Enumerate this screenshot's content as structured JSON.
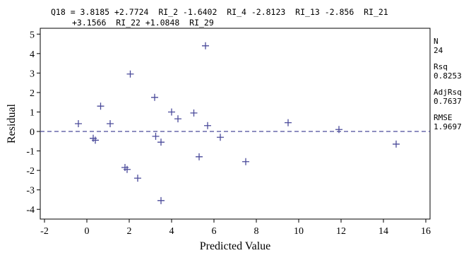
{
  "equation": {
    "line1": "Q18 = 3.8185 +2.7724  RI_2 -1.6402  RI_4 -2.8123  RI_13 -2.856  RI_21",
    "line2": "+3.1566  RI_22 +1.0848  RI_29"
  },
  "stats": [
    {
      "label": "N",
      "value": "24"
    },
    {
      "label": "Rsq",
      "value": "0.8253"
    },
    {
      "label": "AdjRsq",
      "value": "0.7637"
    },
    {
      "label": "RMSE",
      "value": "1.9697"
    }
  ],
  "colors": {
    "marker": "#4a4a9a",
    "reference_line": "#4a4a9a",
    "axis": "#000000"
  },
  "chart_data": {
    "type": "scatter",
    "xlabel": "Predicted Value",
    "ylabel": "Residual",
    "xlim": [
      -2.2,
      16.2
    ],
    "ylim": [
      -4.5,
      5.3
    ],
    "xticks": [
      -2,
      0,
      2,
      4,
      6,
      8,
      10,
      12,
      14,
      16
    ],
    "yticks": [
      5,
      4,
      3,
      2,
      1,
      0,
      -1,
      -2,
      -3,
      -4
    ],
    "marker": "plus",
    "reference_line": {
      "y": 0,
      "style": "dashed"
    },
    "grid": false,
    "points": [
      {
        "x": -0.4,
        "y": 0.4
      },
      {
        "x": 0.3,
        "y": -0.35
      },
      {
        "x": 0.4,
        "y": -0.45
      },
      {
        "x": 0.65,
        "y": 1.3
      },
      {
        "x": 1.1,
        "y": 0.4
      },
      {
        "x": 1.8,
        "y": -1.85
      },
      {
        "x": 1.9,
        "y": -1.95
      },
      {
        "x": 2.05,
        "y": 2.95
      },
      {
        "x": 2.4,
        "y": -2.4
      },
      {
        "x": 3.2,
        "y": 1.75
      },
      {
        "x": 3.25,
        "y": -0.25
      },
      {
        "x": 3.5,
        "y": -0.55
      },
      {
        "x": 3.5,
        "y": -3.55
      },
      {
        "x": 4.0,
        "y": 1.0
      },
      {
        "x": 4.3,
        "y": 0.65
      },
      {
        "x": 5.05,
        "y": 0.95
      },
      {
        "x": 5.3,
        "y": -1.3
      },
      {
        "x": 5.6,
        "y": 4.4
      },
      {
        "x": 5.7,
        "y": 0.3
      },
      {
        "x": 6.3,
        "y": -0.3
      },
      {
        "x": 7.5,
        "y": -1.55
      },
      {
        "x": 9.5,
        "y": 0.45
      },
      {
        "x": 11.9,
        "y": 0.1
      },
      {
        "x": 14.6,
        "y": -0.65
      }
    ]
  }
}
